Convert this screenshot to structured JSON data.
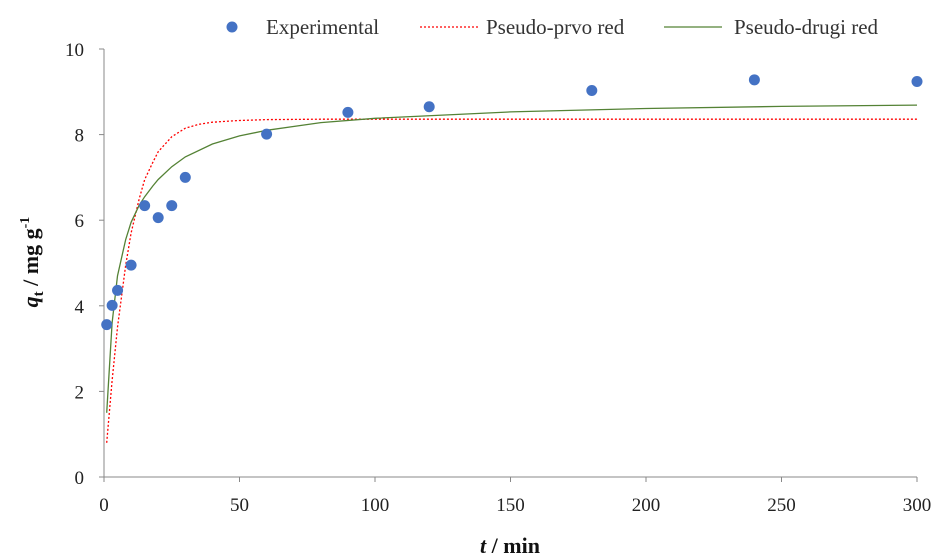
{
  "chart_data": {
    "type": "scatter",
    "xlabel": {
      "italic": "t",
      "rest": " / min"
    },
    "ylabel": {
      "italic": "q",
      "sub": "t",
      "rest": " / mg g",
      "sup": "-1"
    },
    "xlim": [
      0,
      300
    ],
    "ylim": [
      0,
      10
    ],
    "x_ticks": [
      0,
      50,
      100,
      150,
      200,
      250,
      300
    ],
    "y_ticks": [
      0,
      2,
      4,
      6,
      8,
      10
    ],
    "grid": false,
    "legend_position": "top",
    "series": [
      {
        "name": "Experimental",
        "kind": "markers",
        "color": "#4472C4",
        "x": [
          1,
          3,
          5,
          10,
          15,
          20,
          25,
          30,
          60,
          90,
          120,
          180,
          240,
          300
        ],
        "y": [
          3.56,
          4.01,
          4.36,
          4.95,
          6.34,
          6.06,
          6.34,
          7.0,
          8.01,
          8.52,
          8.65,
          9.03,
          9.28,
          9.24
        ]
      },
      {
        "name": "Pseudo-prvo red",
        "kind": "line",
        "style": "dotted",
        "color": "#FF0000",
        "x": [
          1,
          3,
          5,
          8,
          10,
          13,
          15,
          18,
          20,
          25,
          30,
          35,
          40,
          50,
          60,
          80,
          100,
          150,
          200,
          250,
          300
        ],
        "y": [
          0.8,
          2.25,
          3.5,
          4.95,
          5.7,
          6.5,
          6.95,
          7.35,
          7.6,
          7.95,
          8.15,
          8.24,
          8.29,
          8.33,
          8.35,
          8.36,
          8.36,
          8.36,
          8.36,
          8.36,
          8.36
        ]
      },
      {
        "name": "Pseudo-drugi red",
        "kind": "line",
        "style": "solid",
        "color": "#548235",
        "x": [
          1,
          3,
          5,
          8,
          10,
          13,
          15,
          18,
          20,
          25,
          30,
          40,
          50,
          60,
          80,
          100,
          150,
          200,
          250,
          300
        ],
        "y": [
          1.5,
          3.6,
          4.7,
          5.55,
          5.95,
          6.35,
          6.55,
          6.8,
          6.95,
          7.25,
          7.48,
          7.78,
          7.97,
          8.1,
          8.28,
          8.38,
          8.53,
          8.61,
          8.66,
          8.69
        ]
      }
    ]
  }
}
